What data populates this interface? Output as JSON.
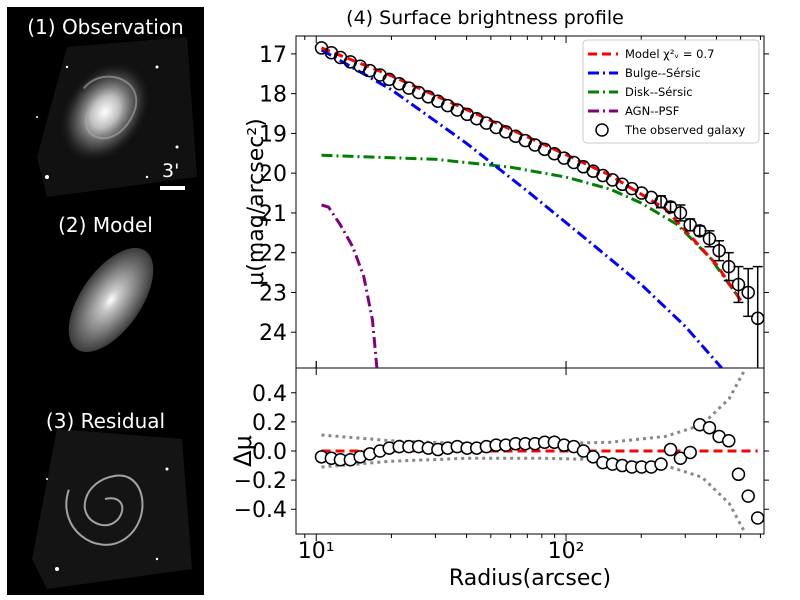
{
  "panels": {
    "observation": {
      "title": "(1) Observation",
      "scale_label": "3'"
    },
    "model": {
      "title": "(2) Model"
    },
    "residual": {
      "title": "(3) Residual"
    }
  },
  "chart_data": {
    "type": "line",
    "title": "(4) Surface brightness profile",
    "xlabel": "Radius(arcsec)",
    "ylabel_top": "μ(mag/arcsec²)",
    "ylabel_bottom": "Δμ",
    "xscale": "log",
    "xlim": [
      8.3,
      620
    ],
    "x_tick_labels": [
      "10¹",
      "10²"
    ],
    "top": {
      "ylim": [
        24.9,
        16.55
      ],
      "yticks": [
        "17",
        "18",
        "19",
        "20",
        "21",
        "22",
        "23",
        "24"
      ],
      "legend": {
        "position": "top-right",
        "entries": [
          {
            "label": "Model χ²ᵥ = 0.7",
            "style": "dashed",
            "color": "#ff0000"
          },
          {
            "label": "Bulge--Sérsic",
            "style": "dashdot",
            "color": "#0000ff"
          },
          {
            "label": "Disk--Sérsic",
            "style": "dashdot",
            "color": "#008000"
          },
          {
            "label": "AGN--PSF",
            "style": "dashdot",
            "color": "#800080"
          },
          {
            "label": "The observed galaxy",
            "style": "marker",
            "color": "#000000"
          }
        ]
      },
      "series": [
        {
          "name": "Model",
          "color": "#ff0000",
          "x": [
            10.5,
            20,
            40,
            80,
            150,
            250,
            400,
            500
          ],
          "y": [
            16.85,
            17.55,
            18.4,
            19.25,
            20.05,
            20.9,
            22.3,
            23.2
          ]
        },
        {
          "name": "Bulge--Sérsic",
          "color": "#0000ff",
          "x": [
            10.5,
            20,
            40,
            70,
            120,
            200,
            300,
            420
          ],
          "y": [
            16.9,
            17.9,
            19.25,
            20.45,
            21.65,
            22.8,
            23.85,
            24.9
          ]
        },
        {
          "name": "Disk--Sérsic",
          "color": "#008000",
          "x": [
            10.5,
            30,
            60,
            100,
            150,
            200,
            280,
            380,
            500
          ],
          "y": [
            19.55,
            19.65,
            19.85,
            20.1,
            20.4,
            20.75,
            21.3,
            22.15,
            23.2
          ]
        },
        {
          "name": "AGN--PSF",
          "color": "#800080",
          "x": [
            10.5,
            11.2,
            12.5,
            14,
            15.5,
            16.8,
            17.5
          ],
          "y": [
            20.8,
            20.85,
            21.3,
            21.85,
            22.6,
            23.7,
            24.9
          ]
        }
      ],
      "observed": {
        "x": [
          10.5,
          11.5,
          12.5,
          13.7,
          15,
          16.4,
          18,
          19.6,
          21.5,
          23.5,
          25.7,
          28.1,
          30.7,
          33.6,
          36.7,
          40.2,
          43.9,
          48,
          52.5,
          57.4,
          62.8,
          68.7,
          75.1,
          82.1,
          89.8,
          98.2,
          107.4,
          117.4,
          128.4,
          140.4,
          153.5,
          167.9,
          183.5,
          200.7,
          219.4,
          240,
          262,
          287,
          314,
          343,
          375,
          410,
          448,
          490,
          536,
          585
        ],
        "y": [
          16.85,
          16.97,
          17.09,
          17.2,
          17.31,
          17.42,
          17.53,
          17.64,
          17.75,
          17.86,
          17.97,
          18.08,
          18.19,
          18.3,
          18.41,
          18.52,
          18.63,
          18.74,
          18.85,
          18.96,
          19.07,
          19.18,
          19.29,
          19.4,
          19.51,
          19.62,
          19.73,
          19.84,
          19.95,
          20.06,
          20.17,
          20.28,
          20.39,
          20.5,
          20.61,
          20.72,
          20.85,
          21.0,
          21.3,
          21.45,
          21.65,
          21.95,
          22.35,
          22.8,
          23.0,
          23.65
        ],
        "yerr": [
          0,
          0,
          0,
          0,
          0,
          0,
          0,
          0,
          0,
          0,
          0,
          0,
          0,
          0,
          0,
          0,
          0,
          0,
          0,
          0,
          0,
          0,
          0,
          0,
          0,
          0,
          0,
          0,
          0,
          0,
          0,
          0,
          0,
          0,
          0,
          0.15,
          0.12,
          0.2,
          0.15,
          0.12,
          0.2,
          0.25,
          0.35,
          0.45,
          0.6,
          1.3
        ]
      }
    },
    "bottom": {
      "ylim": [
        -0.57,
        0.57
      ],
      "yticks": [
        "0.4",
        "0.2",
        "0.0",
        "−0.2",
        "−0.4"
      ],
      "residuals": {
        "x": [
          10.5,
          11.5,
          12.5,
          13.7,
          15,
          16.4,
          18,
          19.6,
          21.5,
          23.5,
          25.7,
          28.1,
          30.7,
          33.6,
          36.7,
          40.2,
          43.9,
          48,
          52.5,
          57.4,
          62.8,
          68.7,
          75.1,
          82.1,
          89.8,
          98.2,
          107.4,
          117.4,
          128.4,
          140.4,
          153.5,
          167.9,
          183.5,
          200.7,
          219.4,
          240,
          262,
          287,
          314,
          343,
          375,
          410,
          448,
          490,
          536,
          585
        ],
        "y": [
          -0.04,
          -0.05,
          -0.06,
          -0.06,
          -0.04,
          -0.02,
          0.0,
          0.02,
          0.03,
          0.03,
          0.03,
          0.02,
          0.01,
          0.02,
          0.03,
          0.02,
          0.02,
          0.03,
          0.04,
          0.04,
          0.05,
          0.05,
          0.05,
          0.06,
          0.06,
          0.04,
          0.03,
          0.0,
          -0.04,
          -0.08,
          -0.09,
          -0.1,
          -0.11,
          -0.11,
          -0.11,
          -0.09,
          0.01,
          -0.05,
          -0.01,
          0.18,
          0.16,
          0.1,
          0.07,
          -0.16,
          -0.31,
          -0.46
        ]
      },
      "band_x": [
        10.5,
        20,
        40,
        80,
        150,
        250,
        350,
        450,
        520
      ],
      "band_upper": [
        0.11,
        0.07,
        0.05,
        0.05,
        0.06,
        0.1,
        0.18,
        0.36,
        0.56
      ],
      "band_lower": [
        -0.11,
        -0.07,
        -0.05,
        -0.05,
        -0.06,
        -0.1,
        -0.18,
        -0.36,
        -0.56
      ]
    }
  }
}
